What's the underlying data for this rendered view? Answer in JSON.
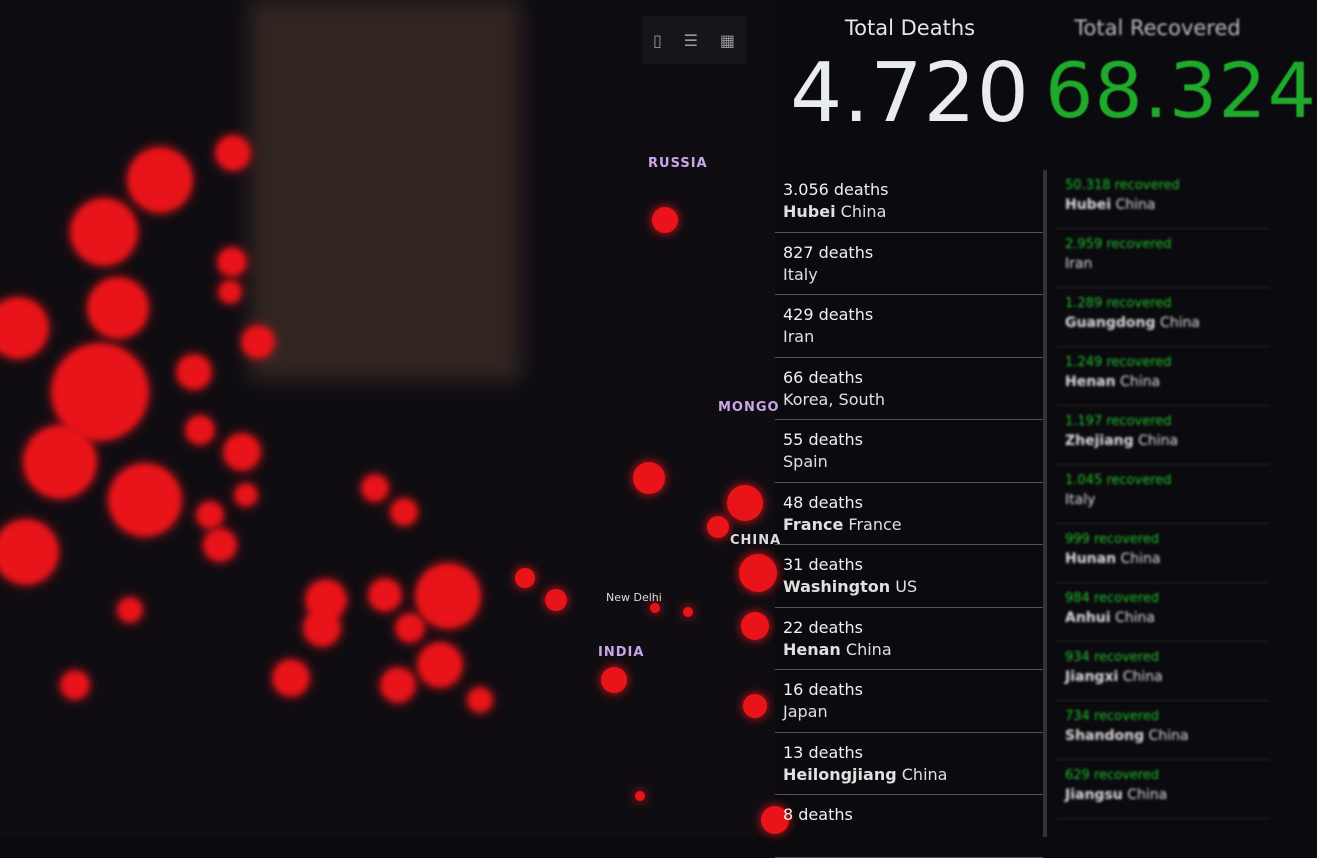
{
  "map": {
    "labels": {
      "russia": "RUSSIA",
      "mongolia": "MONGO",
      "china": "CHINA",
      "india": "INDIA",
      "new_delhi": "New Delhi"
    },
    "accent_color": "#e8141a"
  },
  "toolbar": {
    "icons": [
      "bookmark-icon",
      "list-icon",
      "grid-icon"
    ]
  },
  "deaths": {
    "title": "Total Deaths",
    "total": "4.720",
    "color": "#e9ecef",
    "items": [
      {
        "count": "3.056 deaths",
        "region": "Hubei",
        "country": "China"
      },
      {
        "count": "827 deaths",
        "region": "",
        "country": "Italy"
      },
      {
        "count": "429 deaths",
        "region": "",
        "country": "Iran"
      },
      {
        "count": "66 deaths",
        "region": "",
        "country": "Korea, South"
      },
      {
        "count": "55 deaths",
        "region": "",
        "country": "Spain"
      },
      {
        "count": "48 deaths",
        "region": "France",
        "country": "France"
      },
      {
        "count": "31 deaths",
        "region": "Washington",
        "country": "US"
      },
      {
        "count": "22 deaths",
        "region": "Henan",
        "country": "China"
      },
      {
        "count": "16 deaths",
        "region": "",
        "country": "Japan"
      },
      {
        "count": "13 deaths",
        "region": "Heilongjiang",
        "country": "China"
      },
      {
        "count": "8 deaths",
        "region": "",
        "country": ""
      }
    ]
  },
  "recovered": {
    "title": "Total Recovered",
    "total": "68.324",
    "color": "#1faa2c",
    "items": [
      {
        "count": "50.318 recovered",
        "region": "Hubei",
        "country": "China"
      },
      {
        "count": "2.959 recovered",
        "region": "",
        "country": "Iran"
      },
      {
        "count": "1.289 recovered",
        "region": "Guangdong",
        "country": "China"
      },
      {
        "count": "1.249 recovered",
        "region": "Henan",
        "country": "China"
      },
      {
        "count": "1.197 recovered",
        "region": "Zhejiang",
        "country": "China"
      },
      {
        "count": "1.045 recovered",
        "region": "",
        "country": "Italy"
      },
      {
        "count": "999 recovered",
        "region": "Hunan",
        "country": "China"
      },
      {
        "count": "984 recovered",
        "region": "Anhui",
        "country": "China"
      },
      {
        "count": "934 recovered",
        "region": "Jiangxi",
        "country": "China"
      },
      {
        "count": "734 recovered",
        "region": "Shandong",
        "country": "China"
      },
      {
        "count": "629 recovered",
        "region": "Jiangsu",
        "country": "China"
      }
    ]
  }
}
